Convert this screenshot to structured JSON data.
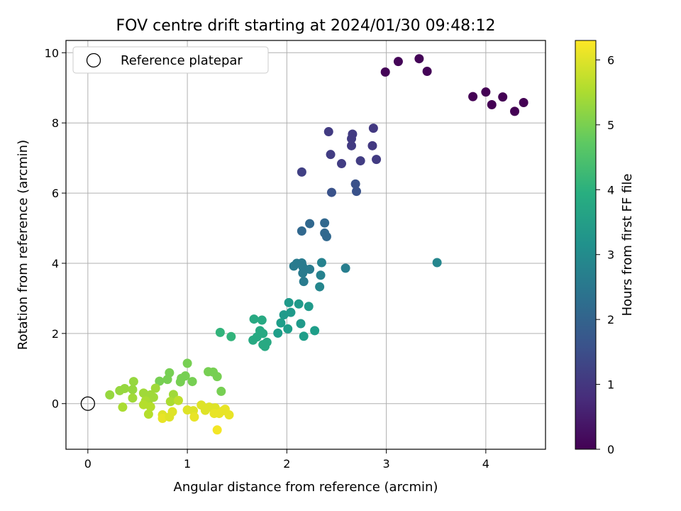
{
  "chart_data": {
    "type": "scatter",
    "title": "FOV centre drift starting at 2024/01/30 09:48:12",
    "xlabel": "Angular distance from reference (arcmin)",
    "ylabel": "Rotation from reference (arcmin)",
    "xlim": [
      -0.22,
      4.6
    ],
    "ylim": [
      -1.3,
      10.35
    ],
    "xticks": [
      0,
      1,
      2,
      3,
      4
    ],
    "yticks": [
      0,
      2,
      4,
      6,
      8,
      10
    ],
    "grid": true,
    "legend": {
      "position": "top-left",
      "entries": [
        {
          "label": "Reference platepar",
          "marker": "open-circle"
        }
      ]
    },
    "reference_point": {
      "x": 0,
      "y": 0
    },
    "colorbar": {
      "label": "Hours from first FF file",
      "colormap": "viridis",
      "range": [
        0,
        6.3
      ],
      "ticks": [
        0,
        1,
        2,
        3,
        4,
        5,
        6
      ]
    },
    "series": [
      {
        "points": [
          {
            "x": 2.99,
            "y": 9.45,
            "c": 0.05
          },
          {
            "x": 3.12,
            "y": 9.75,
            "c": 0.05
          },
          {
            "x": 3.33,
            "y": 9.83,
            "c": 0.05
          },
          {
            "x": 3.41,
            "y": 9.47,
            "c": 0.05
          },
          {
            "x": 3.87,
            "y": 8.75,
            "c": 0.0
          },
          {
            "x": 4.0,
            "y": 8.88,
            "c": 0.0
          },
          {
            "x": 4.06,
            "y": 8.52,
            "c": 0.0
          },
          {
            "x": 4.17,
            "y": 8.74,
            "c": 0.0
          },
          {
            "x": 4.29,
            "y": 8.33,
            "c": 0.0
          },
          {
            "x": 4.38,
            "y": 8.58,
            "c": 0.0
          },
          {
            "x": 2.42,
            "y": 7.75,
            "c": 1.1
          },
          {
            "x": 2.66,
            "y": 7.68,
            "c": 1.1
          },
          {
            "x": 2.65,
            "y": 7.55,
            "c": 1.1
          },
          {
            "x": 2.87,
            "y": 7.85,
            "c": 1.05
          },
          {
            "x": 2.65,
            "y": 7.35,
            "c": 1.1
          },
          {
            "x": 2.86,
            "y": 7.35,
            "c": 1.05
          },
          {
            "x": 2.44,
            "y": 7.1,
            "c": 1.15
          },
          {
            "x": 2.74,
            "y": 6.92,
            "c": 1.15
          },
          {
            "x": 2.9,
            "y": 6.96,
            "c": 1.1
          },
          {
            "x": 2.55,
            "y": 6.84,
            "c": 1.15
          },
          {
            "x": 2.15,
            "y": 6.6,
            "c": 1.2
          },
          {
            "x": 2.69,
            "y": 6.26,
            "c": 1.6
          },
          {
            "x": 2.7,
            "y": 6.05,
            "c": 1.6
          },
          {
            "x": 2.45,
            "y": 6.02,
            "c": 1.6
          },
          {
            "x": 2.38,
            "y": 5.15,
            "c": 2.1
          },
          {
            "x": 2.23,
            "y": 5.13,
            "c": 2.1
          },
          {
            "x": 2.15,
            "y": 4.92,
            "c": 2.1
          },
          {
            "x": 2.38,
            "y": 4.86,
            "c": 2.1
          },
          {
            "x": 2.4,
            "y": 4.76,
            "c": 2.1
          },
          {
            "x": 2.1,
            "y": 4.0,
            "c": 2.6
          },
          {
            "x": 2.15,
            "y": 4.01,
            "c": 2.6
          },
          {
            "x": 2.07,
            "y": 3.92,
            "c": 2.6
          },
          {
            "x": 2.16,
            "y": 3.9,
            "c": 2.6
          },
          {
            "x": 2.23,
            "y": 3.83,
            "c": 2.6
          },
          {
            "x": 2.16,
            "y": 3.72,
            "c": 2.6
          },
          {
            "x": 2.17,
            "y": 3.48,
            "c": 2.6
          },
          {
            "x": 2.35,
            "y": 4.02,
            "c": 2.8
          },
          {
            "x": 2.34,
            "y": 3.66,
            "c": 2.8
          },
          {
            "x": 2.33,
            "y": 3.33,
            "c": 2.9
          },
          {
            "x": 2.59,
            "y": 3.86,
            "c": 2.7
          },
          {
            "x": 3.51,
            "y": 4.02,
            "c": 2.9
          },
          {
            "x": 2.02,
            "y": 2.88,
            "c": 3.4
          },
          {
            "x": 2.12,
            "y": 2.84,
            "c": 3.4
          },
          {
            "x": 2.22,
            "y": 2.77,
            "c": 3.4
          },
          {
            "x": 2.04,
            "y": 2.6,
            "c": 3.4
          },
          {
            "x": 1.97,
            "y": 2.53,
            "c": 3.4
          },
          {
            "x": 2.14,
            "y": 2.28,
            "c": 3.4
          },
          {
            "x": 1.94,
            "y": 2.3,
            "c": 3.5
          },
          {
            "x": 2.01,
            "y": 2.13,
            "c": 3.5
          },
          {
            "x": 2.28,
            "y": 2.08,
            "c": 3.5
          },
          {
            "x": 2.17,
            "y": 1.92,
            "c": 3.5
          },
          {
            "x": 1.91,
            "y": 2.01,
            "c": 3.5
          },
          {
            "x": 1.67,
            "y": 2.41,
            "c": 3.8
          },
          {
            "x": 1.75,
            "y": 2.38,
            "c": 3.8
          },
          {
            "x": 1.73,
            "y": 2.08,
            "c": 3.8
          },
          {
            "x": 1.76,
            "y": 2.0,
            "c": 3.8
          },
          {
            "x": 1.7,
            "y": 1.9,
            "c": 3.8
          },
          {
            "x": 1.66,
            "y": 1.81,
            "c": 3.8
          },
          {
            "x": 1.8,
            "y": 1.75,
            "c": 3.8
          },
          {
            "x": 1.76,
            "y": 1.68,
            "c": 3.8
          },
          {
            "x": 1.78,
            "y": 1.63,
            "c": 3.8
          },
          {
            "x": 1.33,
            "y": 2.03,
            "c": 4.1
          },
          {
            "x": 1.44,
            "y": 1.91,
            "c": 4.1
          },
          {
            "x": 1.0,
            "y": 1.15,
            "c": 5.0
          },
          {
            "x": 1.21,
            "y": 0.91,
            "c": 5.0
          },
          {
            "x": 1.26,
            "y": 0.9,
            "c": 5.0
          },
          {
            "x": 1.3,
            "y": 0.77,
            "c": 5.0
          },
          {
            "x": 1.05,
            "y": 0.63,
            "c": 5.0
          },
          {
            "x": 1.34,
            "y": 0.35,
            "c": 5.0
          },
          {
            "x": 0.98,
            "y": 0.79,
            "c": 5.0
          },
          {
            "x": 0.94,
            "y": 0.72,
            "c": 5.0
          },
          {
            "x": 0.93,
            "y": 0.62,
            "c": 5.0
          },
          {
            "x": 0.82,
            "y": 0.88,
            "c": 5.0
          },
          {
            "x": 0.8,
            "y": 0.69,
            "c": 5.0
          },
          {
            "x": 0.72,
            "y": 0.64,
            "c": 5.0
          },
          {
            "x": 0.46,
            "y": 0.63,
            "c": 5.3
          },
          {
            "x": 0.45,
            "y": 0.4,
            "c": 5.3
          },
          {
            "x": 0.37,
            "y": 0.43,
            "c": 5.3
          },
          {
            "x": 0.32,
            "y": 0.37,
            "c": 5.3
          },
          {
            "x": 0.22,
            "y": 0.25,
            "c": 5.3
          },
          {
            "x": 0.45,
            "y": 0.16,
            "c": 5.4
          },
          {
            "x": 0.35,
            "y": -0.1,
            "c": 5.5
          },
          {
            "x": 0.56,
            "y": 0.3,
            "c": 5.4
          },
          {
            "x": 0.63,
            "y": 0.25,
            "c": 5.4
          },
          {
            "x": 0.68,
            "y": 0.44,
            "c": 5.4
          },
          {
            "x": 0.66,
            "y": 0.18,
            "c": 5.4
          },
          {
            "x": 0.61,
            "y": 0.1,
            "c": 5.4
          },
          {
            "x": 0.58,
            "y": 0.08,
            "c": 5.5
          },
          {
            "x": 0.86,
            "y": 0.26,
            "c": 5.4
          },
          {
            "x": 0.83,
            "y": 0.06,
            "c": 5.5
          },
          {
            "x": 0.56,
            "y": -0.03,
            "c": 5.6
          },
          {
            "x": 0.63,
            "y": -0.09,
            "c": 5.6
          },
          {
            "x": 0.61,
            "y": -0.3,
            "c": 5.6
          },
          {
            "x": 0.91,
            "y": 0.09,
            "c": 5.7
          },
          {
            "x": 0.75,
            "y": -0.32,
            "c": 6.0
          },
          {
            "x": 0.75,
            "y": -0.42,
            "c": 6.1
          },
          {
            "x": 0.82,
            "y": -0.38,
            "c": 6.0
          },
          {
            "x": 0.85,
            "y": -0.23,
            "c": 6.0
          },
          {
            "x": 1.0,
            "y": -0.18,
            "c": 6.0
          },
          {
            "x": 1.06,
            "y": -0.2,
            "c": 6.0
          },
          {
            "x": 1.07,
            "y": -0.38,
            "c": 6.1
          },
          {
            "x": 1.14,
            "y": -0.04,
            "c": 6.0
          },
          {
            "x": 1.18,
            "y": -0.19,
            "c": 6.0
          },
          {
            "x": 1.22,
            "y": -0.1,
            "c": 6.0
          },
          {
            "x": 1.28,
            "y": -0.12,
            "c": 6.0
          },
          {
            "x": 1.27,
            "y": -0.28,
            "c": 6.1
          },
          {
            "x": 1.32,
            "y": -0.28,
            "c": 6.1
          },
          {
            "x": 1.36,
            "y": -0.2,
            "c": 6.1
          },
          {
            "x": 1.38,
            "y": -0.16,
            "c": 6.1
          },
          {
            "x": 1.42,
            "y": -0.32,
            "c": 6.1
          },
          {
            "x": 1.3,
            "y": -0.75,
            "c": 6.2
          }
        ]
      }
    ]
  }
}
